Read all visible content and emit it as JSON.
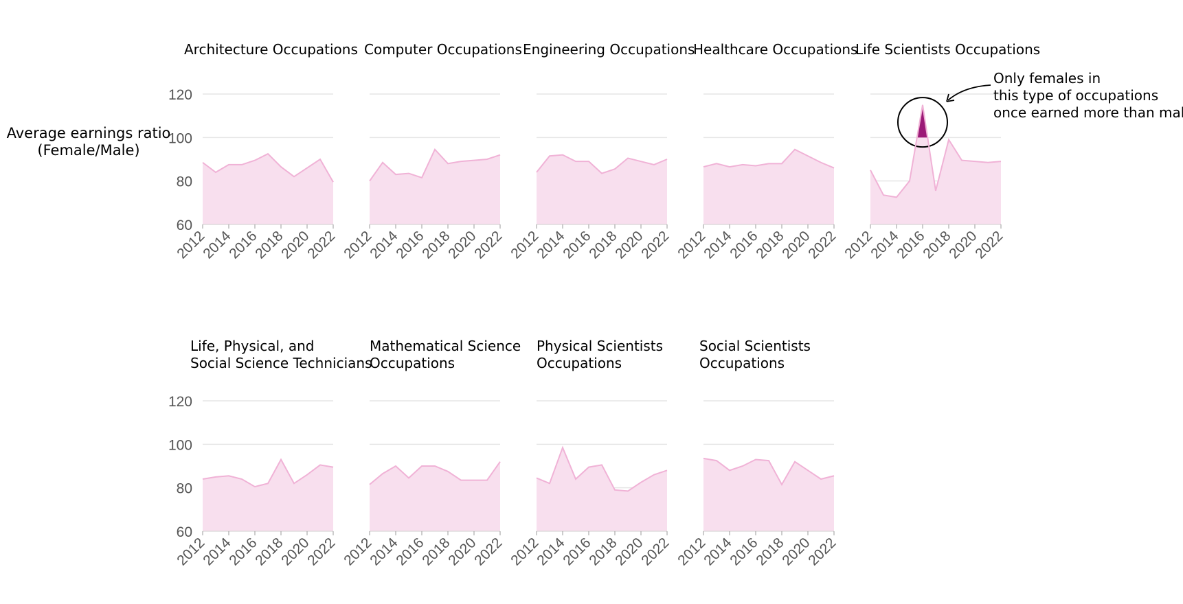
{
  "chart_data": {
    "type": "area",
    "ylabel": [
      "Average earnings ratio",
      "(Female/Male)"
    ],
    "ylim": [
      60,
      120
    ],
    "y_ticks": [
      60,
      80,
      100,
      120
    ],
    "x": [
      2012,
      2013,
      2014,
      2015,
      2016,
      2017,
      2018,
      2019,
      2020,
      2021,
      2022
    ],
    "x_ticks": [
      2012,
      2014,
      2016,
      2018,
      2020,
      2022
    ],
    "grid": true,
    "colors": {
      "area": "#f8dfee",
      "line": "#f0b2d6",
      "highlight": "#9b1a77",
      "grid": "#e6e6e6"
    },
    "panels": [
      {
        "title": [
          "Architecture Occupations"
        ],
        "values": [
          88.5,
          84,
          87.5,
          87.5,
          89.5,
          92.5,
          86.5,
          82,
          86,
          90,
          79.5
        ]
      },
      {
        "title": [
          "Computer Occupations"
        ],
        "values": [
          80,
          88.5,
          83,
          83.5,
          81.5,
          94.5,
          88,
          89,
          89.5,
          90,
          92
        ]
      },
      {
        "title": [
          "Engineering Occupations"
        ],
        "values": [
          84,
          91.5,
          92,
          89,
          89,
          83.5,
          85.5,
          90.5,
          89,
          87.5,
          90
        ]
      },
      {
        "title": [
          "Healthcare Occupations"
        ],
        "values": [
          86.5,
          88,
          86.5,
          87.5,
          87,
          88,
          88,
          94.5,
          91.5,
          88.5,
          86
        ]
      },
      {
        "title": [
          "Life Scientists Occupations"
        ],
        "values": [
          85,
          73.5,
          72.5,
          80,
          115,
          75.5,
          99,
          89.5,
          89,
          88.5,
          89
        ],
        "highlight_year": 2016
      },
      {
        "title": [
          "Life, Physical, and",
          "Social Science Technicians"
        ],
        "values": [
          84,
          85,
          85.5,
          84,
          80.5,
          82,
          93,
          82,
          86,
          90.5,
          89.5
        ]
      },
      {
        "title": [
          "Mathematical Science",
          "Occupations"
        ],
        "values": [
          81.5,
          86.5,
          90,
          84.5,
          90,
          90,
          87.5,
          83.5,
          83.5,
          83.5,
          92
        ]
      },
      {
        "title": [
          "Physical Scientists",
          "Occupations"
        ],
        "values": [
          84.5,
          82,
          98.5,
          84,
          89.5,
          90.5,
          79,
          78.5,
          82.5,
          86,
          88
        ]
      },
      {
        "title": [
          "Social Scientists",
          "Occupations"
        ],
        "values": [
          93.5,
          92.5,
          88,
          90,
          93,
          92.5,
          81.5,
          92,
          88,
          84,
          85.5
        ]
      }
    ],
    "annotation": [
      "Only females in",
      "this type of occupations",
      "once earned more than males"
    ]
  }
}
